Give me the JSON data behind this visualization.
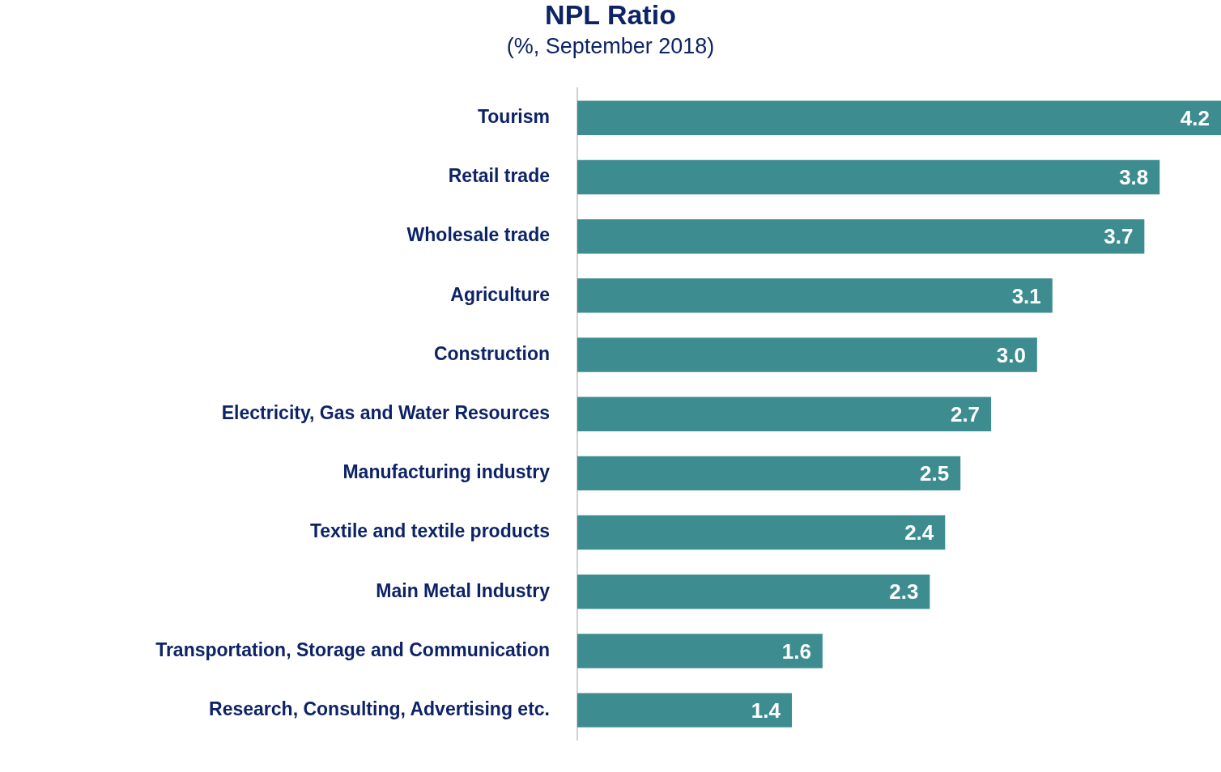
{
  "chart_data": {
    "type": "bar",
    "orientation": "horizontal",
    "title": "NPL Ratio",
    "subtitle": "(%, September 2018)",
    "categories": [
      "Tourism",
      "Retail trade",
      "Wholesale trade",
      "Agriculture",
      "Construction",
      "Electricity, Gas and Water Resources",
      "Manufacturing industry",
      "Textile and textile products",
      "Main Metal Industry",
      "Transportation, Storage and Communication",
      "Research, Consulting, Advertising etc."
    ],
    "values": [
      4.2,
      3.8,
      3.7,
      3.1,
      3.0,
      2.7,
      2.5,
      2.4,
      2.3,
      1.6,
      1.4
    ],
    "value_labels": [
      "4.2",
      "3.8",
      "3.7",
      "3.1",
      "3.0",
      "2.7",
      "2.5",
      "2.4",
      "2.3",
      "1.6",
      "1.4"
    ],
    "color": "#3d8c8f",
    "grid": false,
    "legend": false
  }
}
